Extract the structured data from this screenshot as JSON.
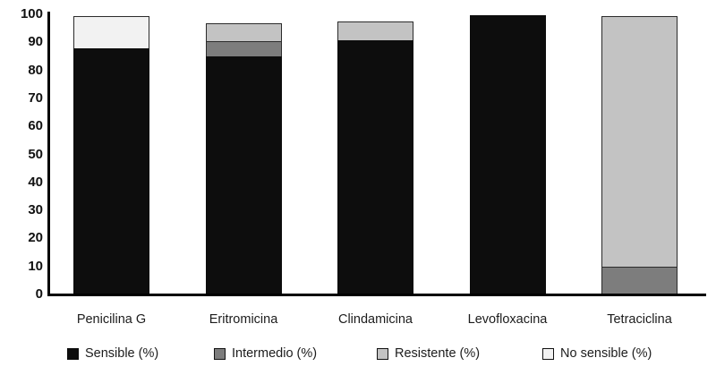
{
  "chart_data": {
    "type": "bar",
    "subtype": "stacked-vertical",
    "title": "",
    "xlabel": "",
    "ylabel": "",
    "ylim": [
      0,
      100
    ],
    "yticks": [
      0,
      10,
      20,
      30,
      40,
      50,
      60,
      70,
      80,
      90,
      100
    ],
    "grid": false,
    "legend_position": "bottom",
    "categories": [
      "Penicilina G",
      "Eritromicina",
      "Clindamicina",
      "Levofloxacina",
      "Tetraciclina"
    ],
    "series": [
      {
        "name": "Sensible (%)",
        "color": "#0d0d0d",
        "values": [
          88,
          85,
          91,
          100,
          0
        ]
      },
      {
        "name": "Intermedio (%)",
        "color": "#7d7d7d",
        "values": [
          0,
          6,
          0,
          0,
          10
        ]
      },
      {
        "name": "Resistente (%)",
        "color": "#c3c3c3",
        "values": [
          0,
          7,
          7,
          0,
          90
        ]
      },
      {
        "name": "No sensible (%)",
        "color": "#f2f2f2",
        "values": [
          12,
          0,
          0,
          0,
          0
        ]
      }
    ],
    "bar_totals_note": "Eritromicina and Clindamicina stacks top out near 98; others reach 100",
    "axis_color": "#000000",
    "background_color": "#ffffff"
  },
  "legend": {
    "items": [
      {
        "label": "Sensible (%)",
        "color": "#0d0d0d"
      },
      {
        "label": "Intermedio (%)",
        "color": "#7d7d7d"
      },
      {
        "label": "Resistente (%)",
        "color": "#c3c3c3"
      },
      {
        "label": "No sensible (%)",
        "color": "#f2f2f2"
      }
    ]
  }
}
